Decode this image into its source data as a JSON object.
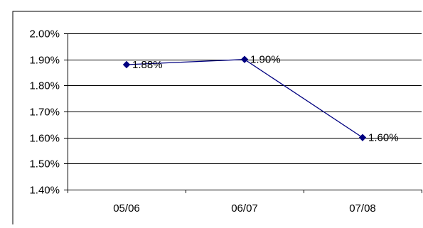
{
  "chart_data": {
    "type": "line",
    "categories": [
      "05/06",
      "06/07",
      "07/08"
    ],
    "series": [
      {
        "values": [
          1.88,
          1.9,
          1.6
        ],
        "data_labels": [
          "1.88%",
          "1.90%",
          "1.60%"
        ],
        "color": "#000080",
        "marker": "diamond"
      }
    ],
    "ylim": [
      1.4,
      2.0
    ],
    "y_ticks": [
      2.0,
      1.9,
      1.8,
      1.7,
      1.6,
      1.5,
      1.4
    ],
    "y_tick_labels": [
      "2.00%",
      "1.90%",
      "1.80%",
      "1.70%",
      "1.60%",
      "1.50%",
      "1.40%"
    ],
    "grid": true,
    "legend": "none",
    "colors": {
      "line": "#000080",
      "marker": "#000080",
      "grid": "#000000",
      "axis": "#000000",
      "frame": "#000000"
    }
  }
}
